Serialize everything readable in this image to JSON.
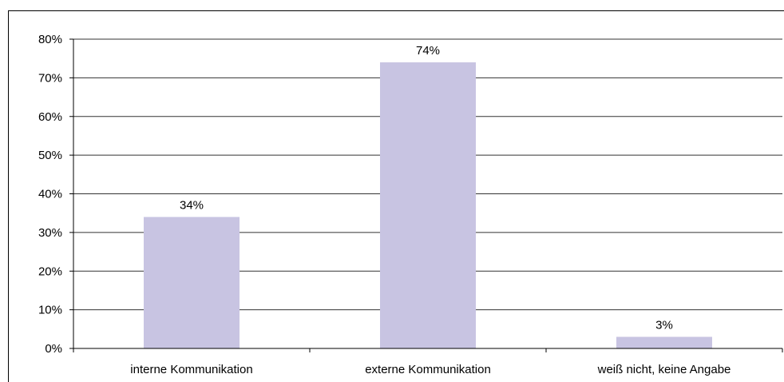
{
  "chart_data": {
    "type": "bar",
    "categories": [
      "interne Kommunikation",
      "externe Kommunikation",
      "weiß nicht, keine Angabe"
    ],
    "values": [
      34,
      74,
      3
    ],
    "data_labels": [
      "34%",
      "74%",
      "3%"
    ],
    "ylim": [
      0,
      80
    ],
    "yticks": [
      {
        "value": 0,
        "label": "0%"
      },
      {
        "value": 10,
        "label": "10%"
      },
      {
        "value": 20,
        "label": "20%"
      },
      {
        "value": 30,
        "label": "30%"
      },
      {
        "value": 40,
        "label": "40%"
      },
      {
        "value": 50,
        "label": "50%"
      },
      {
        "value": 60,
        "label": "60%"
      },
      {
        "value": 70,
        "label": "70%"
      },
      {
        "value": 80,
        "label": "80%"
      }
    ],
    "grid": true,
    "legend": "none",
    "bar_color": "#c8c4e2",
    "grid_color": "#333333"
  }
}
